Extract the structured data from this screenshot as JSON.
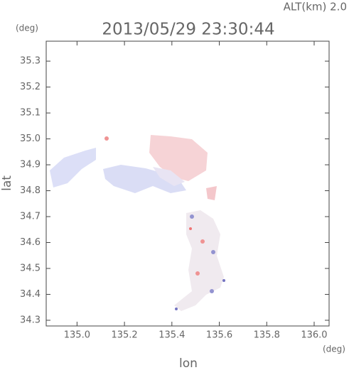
{
  "chart_data": {
    "type": "map",
    "title": "2013/05/29 23:30:44",
    "annotation": "ALT(km) 2.0",
    "x_label": "lon",
    "y_label": "lat",
    "x_unit": "(deg)",
    "y_unit": "(deg)",
    "xlim": [
      134.87,
      136.063
    ],
    "ylim": [
      34.278,
      35.377
    ],
    "xticks": [
      {
        "value": 135,
        "label": "135.0"
      },
      135.2,
      135.4,
      135.6,
      135.8,
      {
        "value": 136,
        "label": "136.0"
      }
    ],
    "yticks": [
      34.3,
      34.4,
      34.5,
      34.6,
      34.7,
      34.8,
      34.9,
      {
        "value": 35,
        "label": "35.0"
      },
      35.1,
      35.2,
      35.3
    ]
  }
}
